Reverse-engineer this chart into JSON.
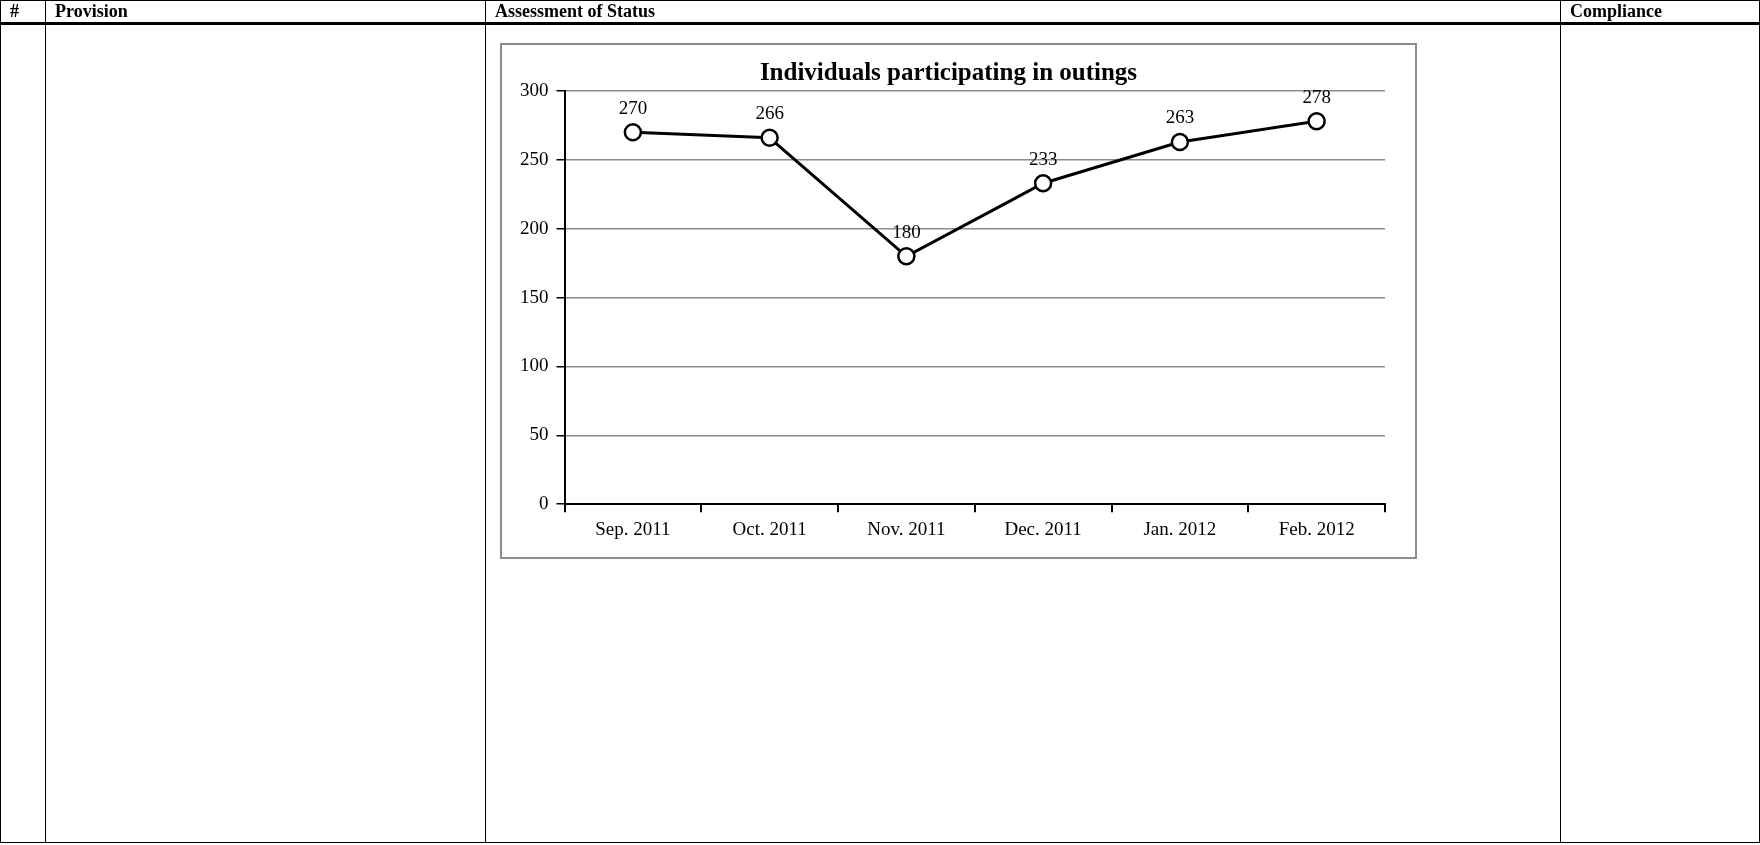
{
  "chart_data": {
    "type": "line",
    "title": "Individuals participating in outings",
    "categories": [
      "Sep. 2011",
      "Oct. 2011",
      "Nov. 2011",
      "Dec. 2011",
      "Jan. 2012",
      "Feb. 2012"
    ],
    "values": [
      270,
      266,
      180,
      233,
      263,
      278
    ],
    "color": "#000000",
    "ylim": [
      0,
      300
    ],
    "yticks": [
      0,
      50,
      100,
      150,
      200,
      250,
      300
    ],
    "grid": "y",
    "marker": "circle",
    "line_style": "solid",
    "data_labels": true,
    "annotations": [
      "#",
      "Provision",
      "Assessment of Status",
      "Compliance"
    ]
  }
}
